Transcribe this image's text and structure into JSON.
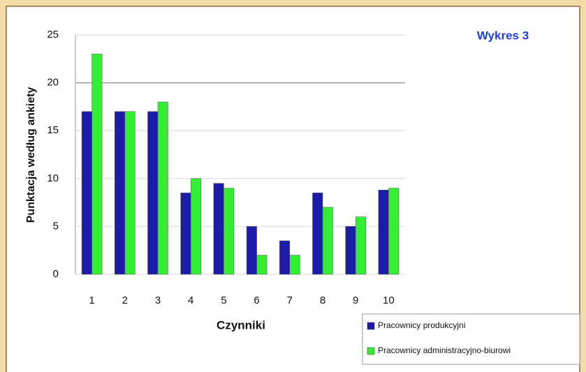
{
  "chart_data": {
    "type": "bar",
    "title": "Wykres 3",
    "x_label": "Czynniki",
    "y_label": "Punktacja według ankiety",
    "categories": [
      "1",
      "2",
      "3",
      "4",
      "5",
      "6",
      "7",
      "8",
      "9",
      "10"
    ],
    "series": [
      {
        "name": "Pracownicy produkcyjni",
        "color": "#1c1ca8",
        "values": [
          17,
          17,
          17,
          8.5,
          9.5,
          5,
          3.5,
          8.5,
          5,
          8.8
        ]
      },
      {
        "name": "Pracownicy administracyjno-biurowi",
        "color": "#33ee33",
        "values": [
          23,
          17,
          18,
          10,
          9,
          2,
          2,
          7,
          6,
          9
        ]
      }
    ],
    "ylim": [
      0,
      25
    ],
    "yticks": [
      0,
      5,
      10,
      15,
      20,
      25
    ],
    "grid": true
  }
}
